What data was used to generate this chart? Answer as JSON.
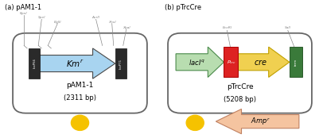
{
  "panel_a_title": "(a) pAM1-1",
  "panel_b_title": "(b) pTrcCre",
  "plasmid_a_name": "pAM1-1",
  "plasmid_a_bp": "(2311 bp)",
  "plasmid_b_name": "pTrcCre",
  "plasmid_b_bp": "(5208 bp)",
  "bg_color": "#ffffff",
  "plasmid_rect_edge": "#666666",
  "ori_color": "#f5c200",
  "km_arrow_color": "#a8d4f0",
  "km_arrow_edge": "#4a4a4a",
  "loxp_color": "#2a2a2a",
  "laciq_color": "#b8ddb0",
  "laciq_edge": "#4a8a4a",
  "ptrc_color": "#dd2222",
  "ptrc_edge": "#aa0000",
  "cre_color": "#f0d050",
  "cre_edge": "#c0a000",
  "term_color": "#3a7a3a",
  "term_edge": "#2a5a2a",
  "ampr_color": "#f5c4a0",
  "ampr_edge": "#c08060",
  "site_color": "#888888"
}
